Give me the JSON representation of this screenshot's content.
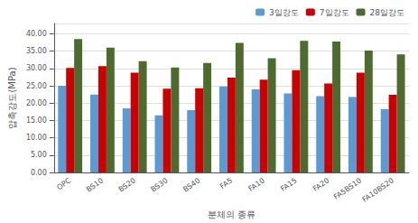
{
  "chart_data": {
    "type": "bar",
    "xlabel": "분체의 종류",
    "ylabel": "압축강도(MPa)",
    "categories": [
      "OPC",
      "BS10",
      "BS20",
      "BS30",
      "BS40",
      "FA5",
      "FA10",
      "FA15",
      "FA20",
      "FA5BS10",
      "FA10BS20"
    ],
    "series": [
      {
        "name": "3일강도",
        "color": "#5b9bd5",
        "values": [
          25.0,
          22.5,
          18.5,
          16.5,
          18.0,
          24.8,
          24.0,
          22.8,
          22.0,
          21.8,
          18.3
        ]
      },
      {
        "name": "7일강도",
        "color": "#cc0000",
        "values": [
          30.2,
          30.7,
          28.8,
          24.2,
          24.3,
          27.4,
          26.8,
          29.5,
          25.7,
          28.8,
          22.4
        ]
      },
      {
        "name": "28일강도",
        "color": "#4d6b2e",
        "values": [
          38.5,
          36.0,
          32.1,
          30.3,
          31.6,
          37.4,
          33.0,
          38.0,
          37.8,
          35.2,
          34.1
        ]
      }
    ],
    "ylim": [
      0,
      43
    ],
    "yticks": [
      {
        "value": 0,
        "label": "0.00"
      },
      {
        "value": 5,
        "label": "5.00"
      },
      {
        "value": 10,
        "label": "10.00"
      },
      {
        "value": 15,
        "label": "15.00"
      },
      {
        "value": 20,
        "label": "20.00"
      },
      {
        "value": 25,
        "label": "25.00"
      },
      {
        "value": 30,
        "label": "30.00"
      },
      {
        "value": 35,
        "label": "35.00"
      },
      {
        "value": 40,
        "label": "40.00"
      }
    ],
    "grid": true,
    "legend": "upper right"
  }
}
